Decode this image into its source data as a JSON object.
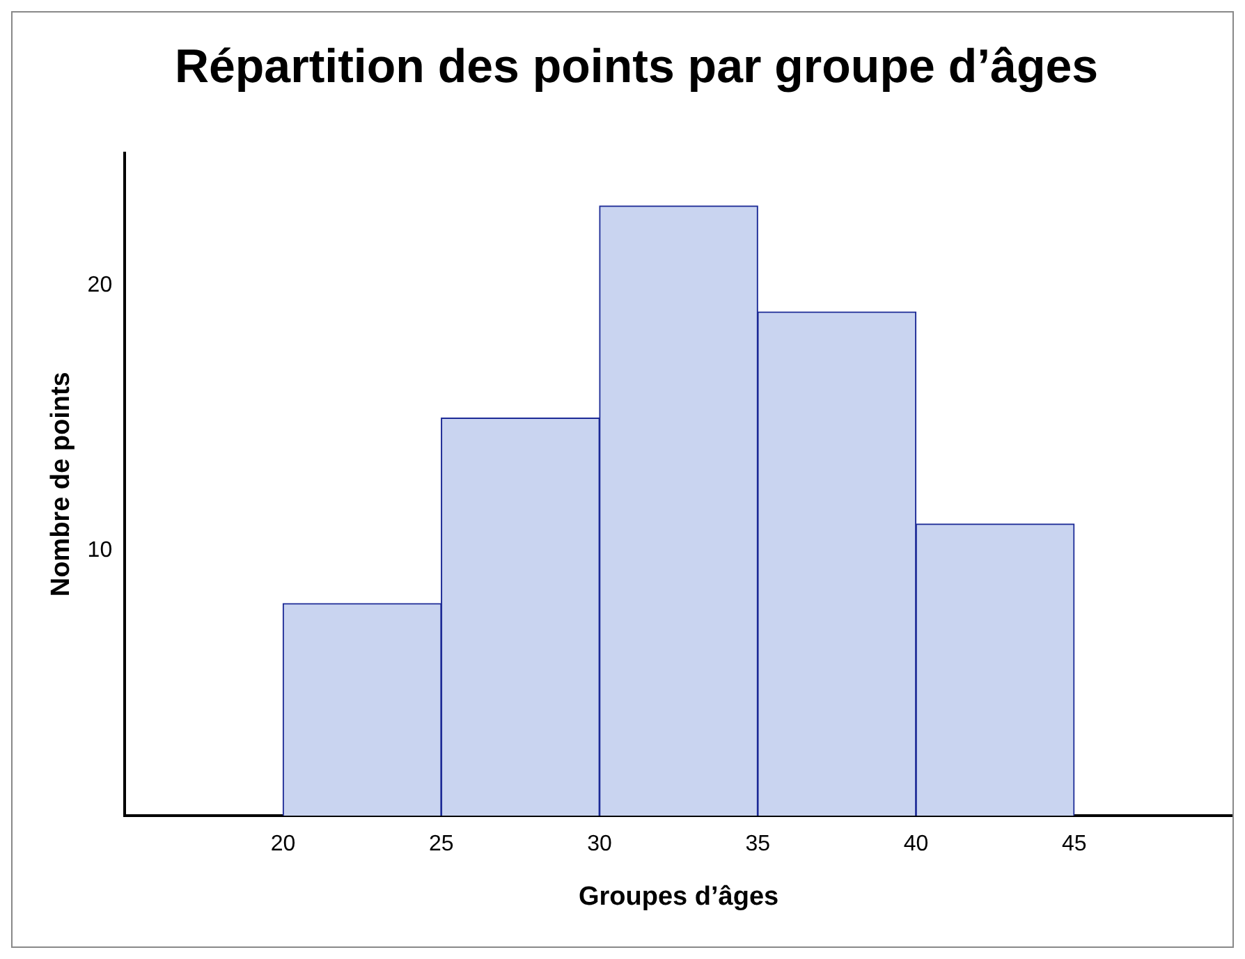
{
  "chart_data": {
    "type": "histogram",
    "title": "Répartition des points par groupe d’âges",
    "xlabel": "Groupes d’âges",
    "ylabel": "Nombre de points",
    "bins": [
      20,
      25,
      30,
      35,
      40,
      45
    ],
    "values": [
      8,
      15,
      23,
      19,
      11
    ],
    "color": "#c9d4f0",
    "xlim": [
      15,
      50
    ],
    "xticks": [
      20,
      25,
      30,
      35,
      40,
      45
    ],
    "ylim": [
      0,
      25
    ],
    "yticks": [
      10,
      20
    ],
    "grid": false,
    "legend": false
  }
}
